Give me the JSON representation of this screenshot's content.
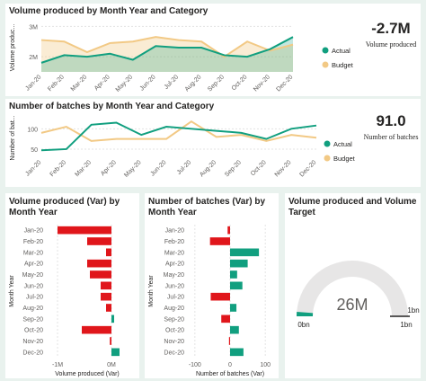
{
  "colors": {
    "actual": "#119f7f",
    "budget": "#f2c985",
    "negative": "#e0161b",
    "positive": "#119f7f",
    "gauge_track": "#e7e6e6",
    "gauge_fill": "#119f7f"
  },
  "months": [
    "Jan-20",
    "Feb-20",
    "Mar-20",
    "Apr-20",
    "May-20",
    "Jun-20",
    "Jul-20",
    "Aug-20",
    "Sep-20",
    "Oct-20",
    "Nov-20",
    "Dec-20"
  ],
  "volume_chart": {
    "title": "Volume produced by Month Year and Category",
    "ylabel": "Volume produc...",
    "yticks": [
      "3M",
      "2M"
    ],
    "legend": {
      "actual": "Actual",
      "budget": "Budget"
    },
    "chart_data": {
      "type": "area",
      "x": [
        "Jan-20",
        "Feb-20",
        "Mar-20",
        "Apr-20",
        "May-20",
        "Jun-20",
        "Jul-20",
        "Aug-20",
        "Sep-20",
        "Oct-20",
        "Nov-20",
        "Dec-20"
      ],
      "ylim": [
        1.5,
        3.1
      ],
      "series": [
        {
          "name": "Actual",
          "values": [
            1.8,
            2.05,
            2.0,
            2.1,
            1.9,
            2.35,
            2.3,
            2.3,
            2.05,
            2.0,
            2.25,
            2.65
          ]
        },
        {
          "name": "Budget",
          "values": [
            2.55,
            2.5,
            2.15,
            2.45,
            2.5,
            2.65,
            2.55,
            2.5,
            2.0,
            2.5,
            2.2,
            2.4
          ]
        }
      ]
    }
  },
  "volume_kpi": {
    "value": "-2.7M",
    "label": "Volume produced"
  },
  "batches_chart": {
    "title": "Number of batches by Month Year and Category",
    "ylabel": "Number of bat...",
    "yticks": [
      "100",
      "50"
    ],
    "legend": {
      "actual": "Actual",
      "budget": "Budget"
    },
    "chart_data": {
      "type": "line",
      "x": [
        "Jan-20",
        "Feb-20",
        "Mar-20",
        "Apr-20",
        "May-20",
        "Jun-20",
        "Jul-20",
        "Aug-20",
        "Sep-20",
        "Oct-20",
        "Nov-20",
        "Dec-20"
      ],
      "ylim": [
        30,
        125
      ],
      "series": [
        {
          "name": "Actual",
          "values": [
            47,
            50,
            110,
            115,
            85,
            105,
            100,
            95,
            90,
            75,
            100,
            108
          ]
        },
        {
          "name": "Budget",
          "values": [
            90,
            105,
            70,
            75,
            75,
            75,
            118,
            80,
            85,
            70,
            85,
            78
          ]
        }
      ]
    }
  },
  "batches_kpi": {
    "value": "91.0",
    "label": "Number of batches"
  },
  "vol_var": {
    "title_line1": "Volume produced (Var) by",
    "title_line2": "Month Year",
    "ylabel": "Month Year",
    "xlabel": "Volume produced (Var)",
    "xticks": [
      "-1M",
      "0M"
    ],
    "chart_data": {
      "type": "bar",
      "orientation": "horizontal",
      "categories": [
        "Jan-20",
        "Feb-20",
        "Mar-20",
        "Apr-20",
        "May-20",
        "Jun-20",
        "Jul-20",
        "Aug-20",
        "Sep-20",
        "Oct-20",
        "Nov-20",
        "Dec-20"
      ],
      "values": [
        -1.0,
        -0.45,
        -0.1,
        -0.45,
        -0.4,
        -0.2,
        -0.2,
        -0.1,
        0.05,
        -0.55,
        -0.03,
        0.15
      ],
      "xlim": [
        -1.2,
        0.3
      ]
    }
  },
  "batch_var": {
    "title_line1": "Number of batches (Var) by",
    "title_line2": "Month Year",
    "ylabel": "Month Year",
    "xlabel": "Number of batches (Var)",
    "xticks": [
      "-100",
      "0",
      "100"
    ],
    "chart_data": {
      "type": "bar",
      "orientation": "horizontal",
      "categories": [
        "Jan-20",
        "Feb-20",
        "Mar-20",
        "Apr-20",
        "May-20",
        "Jun-20",
        "Jul-20",
        "Aug-20",
        "Sep-20",
        "Oct-20",
        "Nov-20",
        "Dec-20"
      ],
      "values": [
        -7,
        -57,
        82,
        50,
        20,
        35,
        -55,
        18,
        -25,
        25,
        -3,
        38
      ],
      "xlim": [
        -120,
        120
      ]
    }
  },
  "gauge": {
    "title_line1": "Volume produced and Volume",
    "title_line2": "Target",
    "value_label": "26M",
    "min_label": "0bn",
    "max_label": "1bn",
    "target_label": "1bn",
    "chart_data": {
      "type": "gauge",
      "value": 0.026,
      "min": 0,
      "max": 1,
      "target": 1
    }
  }
}
